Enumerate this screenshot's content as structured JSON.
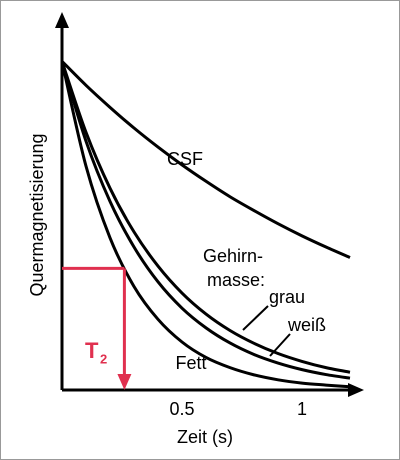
{
  "chart_data": {
    "type": "line",
    "x_label": "Zeit (s)",
    "y_label": "Quermagnetisierung",
    "x": [
      0,
      0.1,
      0.2,
      0.3,
      0.4,
      0.5,
      0.6,
      0.7,
      0.8,
      0.9,
      1.0,
      1.1,
      1.2
    ],
    "series": [
      {
        "name": "CSF",
        "color": "#000000",
        "values": [
          1,
          0.927,
          0.86,
          0.797,
          0.739,
          0.685,
          0.635,
          0.588,
          0.546,
          0.506,
          0.469,
          0.435,
          0.403
        ]
      },
      {
        "name": "grau",
        "color": "#000000",
        "values": [
          1,
          0.784,
          0.614,
          0.481,
          0.377,
          0.295,
          0.231,
          0.181,
          0.142,
          0.111,
          0.087,
          0.068,
          0.054
        ]
      },
      {
        "name": "weiß",
        "color": "#000000",
        "values": [
          1,
          0.757,
          0.574,
          0.435,
          0.329,
          0.249,
          0.189,
          0.143,
          0.108,
          0.082,
          0.062,
          0.047,
          0.036
        ]
      },
      {
        "name": "Fett",
        "color": "#000000",
        "values": [
          1,
          0.681,
          0.463,
          0.315,
          0.215,
          0.146,
          0.099,
          0.068,
          0.046,
          0.031,
          0.021,
          0.015,
          0.01
        ]
      }
    ],
    "group_label": [
      "Gehirn-",
      "masse:"
    ],
    "t2_marker": {
      "x": 0.26,
      "y": 0.37,
      "color": "#e0304f",
      "label": "T",
      "subscript": "2"
    },
    "xlim": [
      0,
      1.25
    ],
    "ylim": [
      0,
      1.15
    ],
    "xticks": [
      0.5,
      1
    ]
  }
}
